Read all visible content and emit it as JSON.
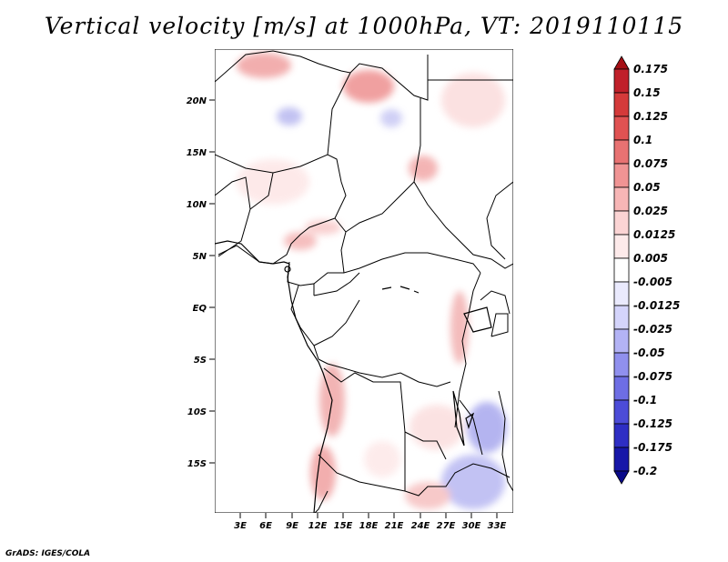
{
  "title": "Vertical velocity [m/s] at 1000hPa, VT: 2019110115",
  "credit": "GrADS: IGES/COLA",
  "lat_labels": [
    "20N",
    "15N",
    "10N",
    "5N",
    "EQ",
    "5S",
    "10S",
    "15S"
  ],
  "lon_labels": [
    "3E",
    "6E",
    "9E",
    "12E",
    "15E",
    "18E",
    "21E",
    "24E",
    "27E",
    "30E",
    "33E"
  ],
  "colorbar": {
    "labels": [
      "0.175",
      "0.15",
      "0.125",
      "0.1",
      "0.075",
      "0.05",
      "0.025",
      "0.0125",
      "0.005",
      "-0.005",
      "-0.0125",
      "-0.025",
      "-0.05",
      "-0.075",
      "-0.1",
      "-0.125",
      "-0.175",
      "-0.2"
    ],
    "colors": [
      "#a50f15",
      "#c0202a",
      "#d43a3a",
      "#e05252",
      "#e87272",
      "#f09494",
      "#f7b6b6",
      "#fbd4d4",
      "#fdeaea",
      "#ffffff",
      "#eaeafd",
      "#d4d4fb",
      "#b3b3f5",
      "#9090ee",
      "#6e6ee4",
      "#4c4cd8",
      "#2e2ec4",
      "#1717a8",
      "#0a0a8a"
    ]
  }
}
